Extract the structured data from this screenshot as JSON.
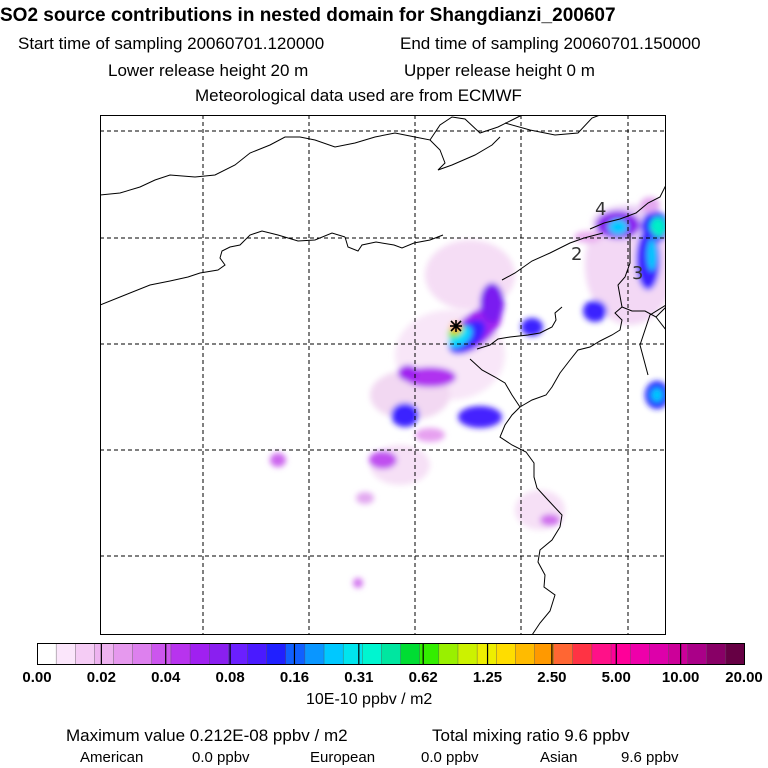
{
  "header": {
    "title": "SO2 source contributions in nested domain for Shangdianzi_200607",
    "start_time": "Start time of sampling 20060701.120000",
    "end_time": "End time of sampling 20060701.150000",
    "lower_release": "Lower release height   20 m",
    "upper_release": "Upper release height    0 m",
    "met_data": "Meteorological data used are from ECMWF"
  },
  "map": {
    "station_labels": [
      "4",
      "2",
      "3"
    ]
  },
  "colorbar": {
    "colors": [
      "#ffffff",
      "#fbe6fb",
      "#f5ccf5",
      "#eeb3f0",
      "#e699ee",
      "#dd80ee",
      "#cc55ee",
      "#b833ee",
      "#a020f0",
      "#8a1ff0",
      "#6b1fff",
      "#4a1aff",
      "#2020ff",
      "#1060ff",
      "#0a96ff",
      "#00c8ff",
      "#00e5ee",
      "#00f5d0",
      "#00e6a0",
      "#00dd33",
      "#33ee00",
      "#99f000",
      "#ccf200",
      "#eeee00",
      "#ffdd00",
      "#ffbb00",
      "#ff9900",
      "#ff6633",
      "#ff3344",
      "#ff1188",
      "#ff0099",
      "#ee00aa",
      "#dd00aa",
      "#cc0099",
      "#aa0088",
      "#880066",
      "#660044"
    ],
    "tick_labels": [
      "0.00",
      "0.02",
      "0.04",
      "0.08",
      "0.16",
      "0.31",
      "0.62",
      "1.25",
      "2.50",
      "5.00",
      "10.00",
      "20.00"
    ],
    "unit": "10E-10 ppbv / m2"
  },
  "footer": {
    "max_label": "Maximum value  0.212E-08 ppbv / m2",
    "total_label": "Total mixing ratio      9.6 ppbv",
    "american_label": "American",
    "american_value": "0.0 ppbv",
    "european_label": "European",
    "european_value": "0.0 ppbv",
    "asian_label": "Asian",
    "asian_value": "9.6 ppbv"
  }
}
